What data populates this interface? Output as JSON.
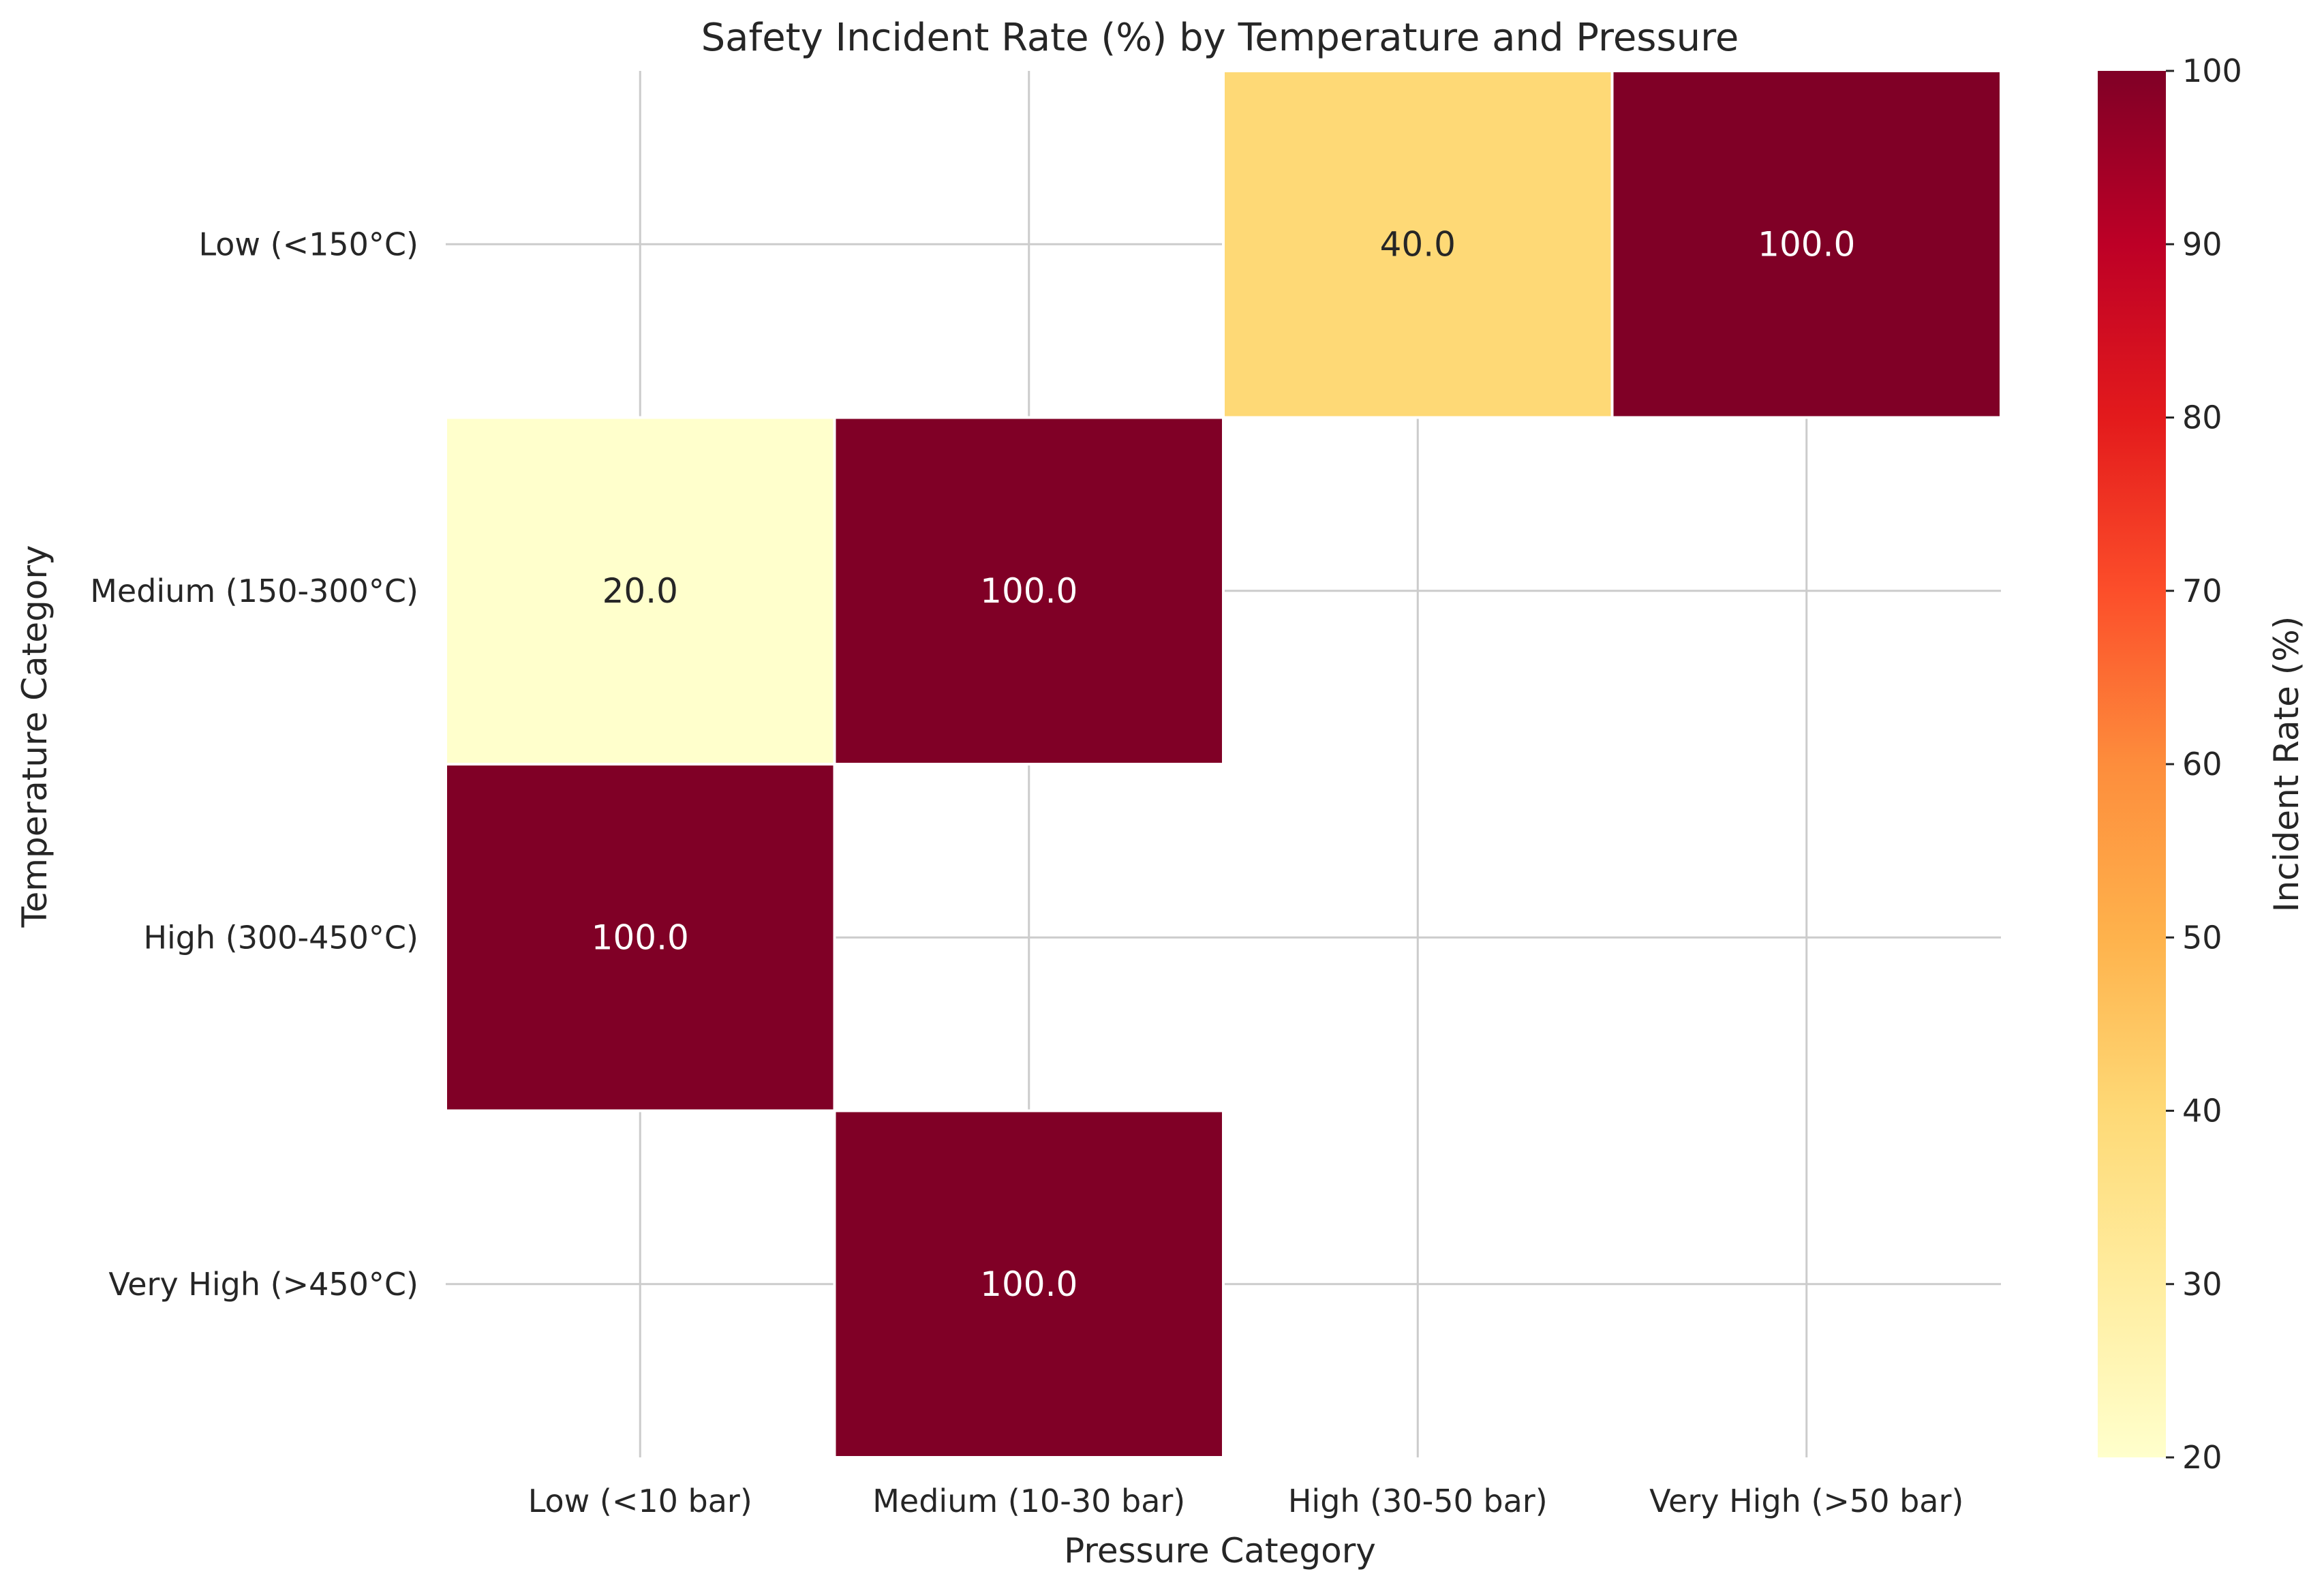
{
  "chart_data": {
    "type": "heatmap",
    "title": "Safety Incident Rate (%) by Temperature and Pressure",
    "xlabel": "Pressure Category",
    "ylabel": "Temperature Category",
    "x_categories": [
      "Low (<10 bar)",
      "Medium (10-30 bar)",
      "High (30-50 bar)",
      "Very High (>50 bar)"
    ],
    "y_categories": [
      "Low (<150°C)",
      "Medium (150-300°C)",
      "High (300-450°C)",
      "Very High (>450°C)"
    ],
    "values": [
      [
        null,
        null,
        40.0,
        100.0
      ],
      [
        20.0,
        100.0,
        null,
        null
      ],
      [
        100.0,
        null,
        null,
        null
      ],
      [
        null,
        100.0,
        null,
        null
      ]
    ],
    "value_labels": [
      [
        null,
        null,
        "40.0",
        "100.0"
      ],
      [
        "20.0",
        "100.0",
        null,
        null
      ],
      [
        "100.0",
        null,
        null,
        null
      ],
      [
        null,
        "100.0",
        null,
        null
      ]
    ],
    "colorbar": {
      "label": "Incident Rate (%)",
      "range": [
        20,
        100
      ],
      "ticks": [
        20,
        30,
        40,
        50,
        60,
        70,
        80,
        90,
        100
      ],
      "colormap": "YlOrRd"
    },
    "grid": true
  }
}
